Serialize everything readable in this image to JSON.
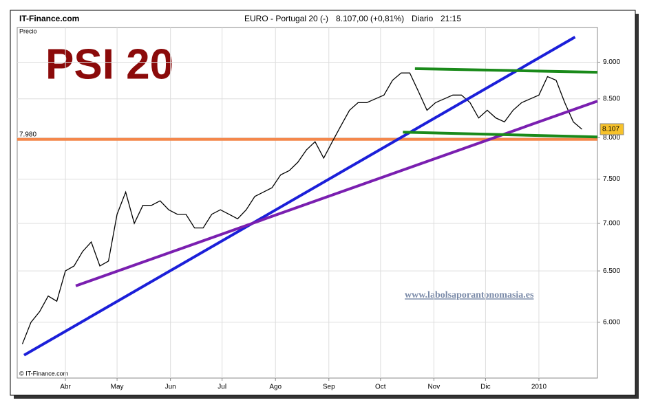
{
  "header": {
    "brand": "IT-Finance.com",
    "instrument": "EURO - Portugal 20 (-)",
    "quote": "8.107,00 (+0,81%)",
    "frequency": "Diario",
    "time": "21:15"
  },
  "chart_data": {
    "type": "line",
    "title": "PSI 20",
    "y_label": "Precio",
    "watermark": "www.labolsaporantonomasia.es",
    "footer": "© IT-Finance.com",
    "log_scale": true,
    "color": "#000000",
    "xlim": [
      63,
      400
    ],
    "ylim": [
      5.5,
      9.5
    ],
    "xticks": [
      {
        "value": 91,
        "label": "Abr"
      },
      {
        "value": 121,
        "label": "May"
      },
      {
        "value": 152,
        "label": "Jun"
      },
      {
        "value": 182,
        "label": "Jul"
      },
      {
        "value": 213,
        "label": "Ago"
      },
      {
        "value": 244,
        "label": "Sep"
      },
      {
        "value": 274,
        "label": "Oct"
      },
      {
        "value": 305,
        "label": "Nov"
      },
      {
        "value": 335,
        "label": "Dic"
      },
      {
        "value": 366,
        "label": "2010"
      }
    ],
    "yticks": [
      {
        "value": 6,
        "label": "6.000"
      },
      {
        "value": 6.5,
        "label": "6.500"
      },
      {
        "value": 7,
        "label": "7.000"
      },
      {
        "value": 7.5,
        "label": "7.500"
      },
      {
        "value": 8,
        "label": "8.000"
      },
      {
        "value": 8.5,
        "label": "8.500"
      },
      {
        "value": 9,
        "label": "9.000"
      }
    ],
    "x": [
      66,
      71,
      76,
      81,
      86,
      91,
      96,
      101,
      106,
      111,
      116,
      121,
      126,
      131,
      136,
      141,
      146,
      151,
      156,
      161,
      166,
      171,
      176,
      181,
      186,
      191,
      196,
      201,
      206,
      211,
      216,
      221,
      226,
      231,
      236,
      241,
      246,
      251,
      256,
      261,
      266,
      271,
      276,
      281,
      286,
      291,
      296,
      301,
      306,
      311,
      316,
      321,
      326,
      331,
      336,
      341,
      346,
      351,
      356,
      361,
      366,
      371,
      376,
      381,
      386,
      391
    ],
    "values": [
      5.8,
      6.0,
      6.1,
      6.25,
      6.2,
      6.5,
      6.55,
      6.7,
      6.8,
      6.55,
      6.6,
      7.1,
      7.35,
      7.0,
      7.2,
      7.2,
      7.25,
      7.15,
      7.1,
      7.1,
      6.95,
      6.95,
      7.1,
      7.15,
      7.1,
      7.05,
      7.15,
      7.3,
      7.35,
      7.4,
      7.55,
      7.6,
      7.7,
      7.85,
      7.95,
      7.75,
      7.95,
      8.15,
      8.35,
      8.45,
      8.45,
      8.5,
      8.55,
      8.75,
      8.85,
      8.85,
      8.6,
      8.35,
      8.45,
      8.5,
      8.55,
      8.55,
      8.45,
      8.25,
      8.35,
      8.25,
      8.2,
      8.35,
      8.45,
      8.5,
      8.55,
      8.8,
      8.75,
      8.45,
      8.2,
      8.107
    ],
    "last_price": {
      "value": 8.107,
      "label": "8.107"
    },
    "hline": {
      "value": 7.98,
      "label": "7.980",
      "color": "#f4874b"
    },
    "trendlines": [
      {
        "color": "#1b1fd9",
        "x": [
          67,
          387
        ],
        "values": [
          5.7,
          9.36
        ]
      },
      {
        "color": "#7a1fb0",
        "x": [
          97,
          400
        ],
        "values": [
          6.35,
          8.47
        ]
      },
      {
        "color": "#1a8a1a",
        "x": [
          294,
          400
        ],
        "values": [
          8.91,
          8.86
        ]
      },
      {
        "color": "#1a8a1a",
        "x": [
          287,
          400
        ],
        "values": [
          8.07,
          8.01
        ]
      }
    ]
  }
}
